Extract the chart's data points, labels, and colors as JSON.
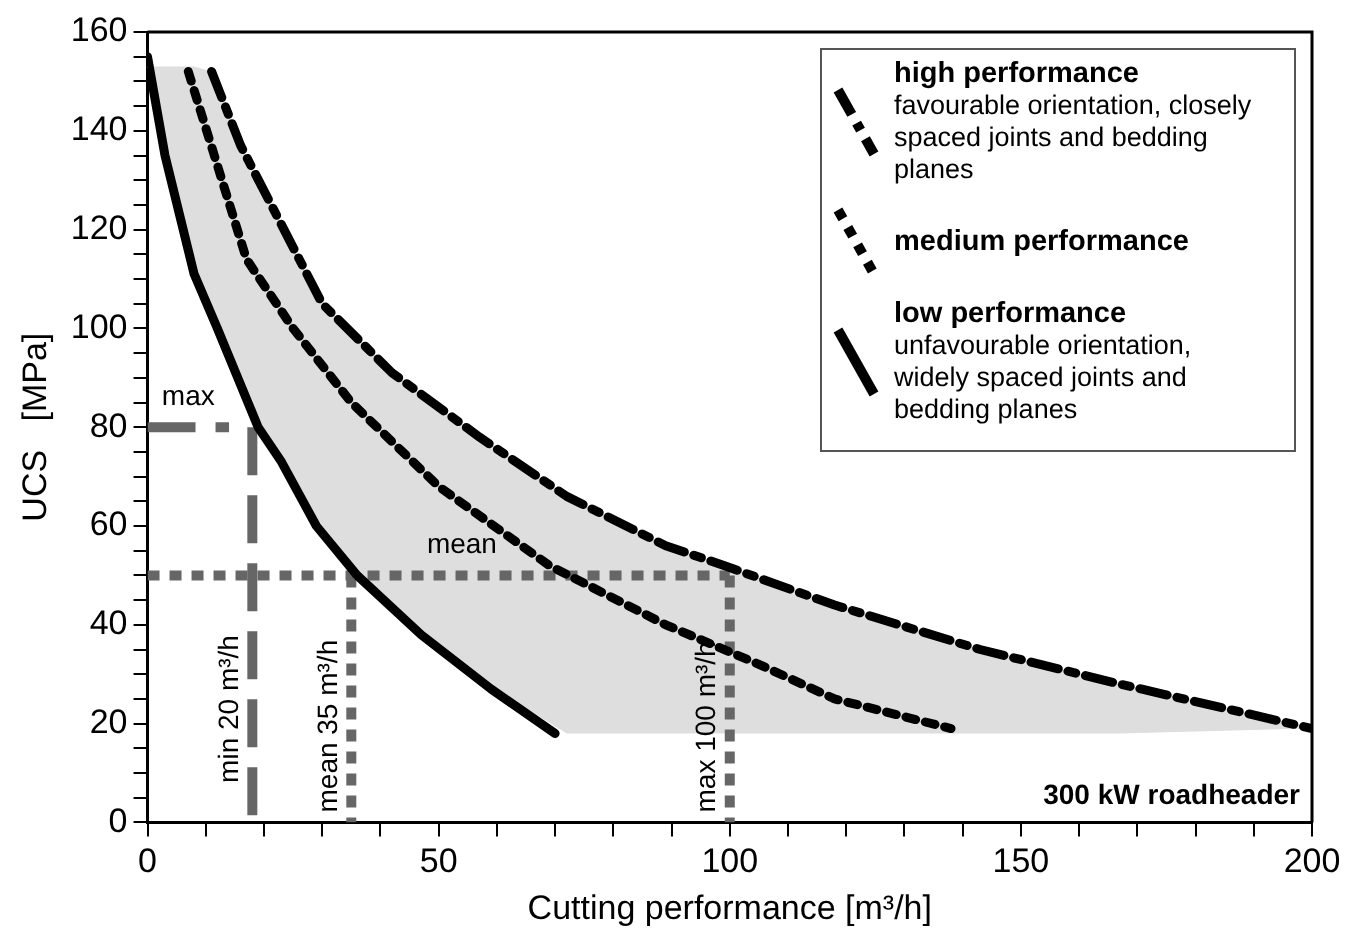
{
  "chart_data": {
    "type": "line",
    "xlabel": "Cutting performance [m³/h]",
    "ylabel": "UCS   [MPa]",
    "xlim": [
      0,
      200
    ],
    "ylim": [
      0,
      160
    ],
    "xticks": [
      0,
      {
        "value": 10,
        "label": null
      },
      {
        "value": 20,
        "label": null
      },
      {
        "value": 30,
        "label": null
      },
      {
        "value": 40,
        "label": null
      },
      50,
      {
        "value": 60,
        "label": null
      },
      {
        "value": 70,
        "label": null
      },
      {
        "value": 80,
        "label": null
      },
      {
        "value": 90,
        "label": null
      },
      100,
      {
        "value": 110,
        "label": null
      },
      {
        "value": 120,
        "label": null
      },
      {
        "value": 130,
        "label": null
      },
      {
        "value": 140,
        "label": null
      },
      150,
      {
        "value": 160,
        "label": null
      },
      {
        "value": 170,
        "label": null
      },
      {
        "value": 180,
        "label": null
      },
      {
        "value": 190,
        "label": null
      },
      200
    ],
    "yticks": [
      0,
      {
        "value": 5,
        "label": null
      },
      {
        "value": 10,
        "label": null
      },
      {
        "value": 15,
        "label": null
      },
      20,
      {
        "value": 25,
        "label": null
      },
      {
        "value": 30,
        "label": null
      },
      {
        "value": 35,
        "label": null
      },
      40,
      {
        "value": 45,
        "label": null
      },
      {
        "value": 50,
        "label": null
      },
      {
        "value": 55,
        "label": null
      },
      60,
      {
        "value": 65,
        "label": null
      },
      {
        "value": 70,
        "label": null
      },
      {
        "value": 75,
        "label": null
      },
      80,
      {
        "value": 85,
        "label": null
      },
      {
        "value": 90,
        "label": null
      },
      {
        "value": 95,
        "label": null
      },
      100,
      {
        "value": 105,
        "label": null
      },
      {
        "value": 110,
        "label": null
      },
      {
        "value": 115,
        "label": null
      },
      120,
      {
        "value": 125,
        "label": null
      },
      {
        "value": 130,
        "label": null
      },
      {
        "value": 135,
        "label": null
      },
      140,
      {
        "value": 145,
        "label": null
      },
      {
        "value": 150,
        "label": null
      },
      {
        "value": 155,
        "label": null
      },
      160
    ],
    "grid": false,
    "legend": "top right",
    "marker": "none",
    "series": [
      {
        "name": "high performance\nfavourable orientation, closely spaced joints and bedding planes",
        "color": "#000000",
        "line_style": "dashed",
        "x": [
          11,
          16,
          23,
          30,
          42,
          57,
          72,
          89,
          99,
          118,
          143,
          167,
          200
        ],
        "values": [
          152,
          137,
          121,
          105,
          91,
          78,
          66,
          56,
          52,
          44,
          35,
          28,
          19
        ]
      },
      {
        "name": "medium performance",
        "color": "#000000",
        "line_style": "dotted",
        "x": [
          7,
          12,
          17,
          25,
          35,
          50,
          69,
          89,
          105,
          118,
          138
        ],
        "values": [
          152,
          133,
          114,
          100,
          85,
          68,
          52,
          40,
          32,
          25,
          19
        ]
      },
      {
        "name": "low performance\nunfavourable orientation, widely spaced joints and bedding planes",
        "color": "#000000",
        "line_style": "solid",
        "x": [
          0,
          3,
          8,
          12,
          19,
          23,
          29,
          36,
          47,
          59,
          70
        ],
        "values": [
          155,
          135,
          111,
          100,
          80,
          73,
          60,
          50,
          38,
          27,
          18
        ]
      },
      {
        "color": "#dedede",
        "x": [
          0,
          3,
          8,
          11,
          16,
          23,
          30,
          42,
          57,
          72,
          89,
          99,
          118,
          143,
          167,
          200
        ],
        "values": [
          null,
          null,
          null,
          null,
          null,
          null,
          null,
          null,
          null,
          null,
          null,
          null,
          null,
          null,
          null,
          null
        ],
        "lower": [
          153,
          135,
          111,
          103,
          88,
          73,
          59,
          43,
          29,
          18,
          18,
          18,
          18,
          18,
          18,
          19
        ],
        "upper": [
          153,
          153,
          153,
          152,
          137,
          121,
          105,
          91,
          78,
          66,
          56,
          52,
          44,
          35,
          28,
          19
        ]
      },
      {
        "color": "#666666",
        "line_style": "dashed",
        "x": [
          0,
          14
        ],
        "values": [
          80,
          80
        ]
      },
      {
        "color": "#666666",
        "line_style": "dashed",
        "x": [
          18,
          18
        ],
        "values": [
          80,
          0
        ]
      },
      {
        "color": "#666666",
        "line_style": "dotted",
        "x": [
          0,
          100
        ],
        "values": [
          50,
          50
        ]
      },
      {
        "color": "#666666",
        "line_style": "dotted",
        "x": [
          35,
          35
        ],
        "values": [
          50,
          0
        ]
      },
      {
        "color": "#666666",
        "line_style": "dotted",
        "x": [
          100,
          100
        ],
        "values": [
          50,
          0
        ]
      }
    ],
    "annotations": [
      "300 kW roadheader",
      {
        "text": "max",
        "x": 7,
        "y": 80
      },
      {
        "text": "min 20 m³/h",
        "x": 18,
        "y": 8
      },
      {
        "text": "mean",
        "x": 54,
        "y": 50
      },
      {
        "text": "mean 35 m³/h",
        "x": 35,
        "y": 2
      },
      {
        "text": "max 100 m³/h",
        "x": 100,
        "y": 2
      }
    ]
  }
}
